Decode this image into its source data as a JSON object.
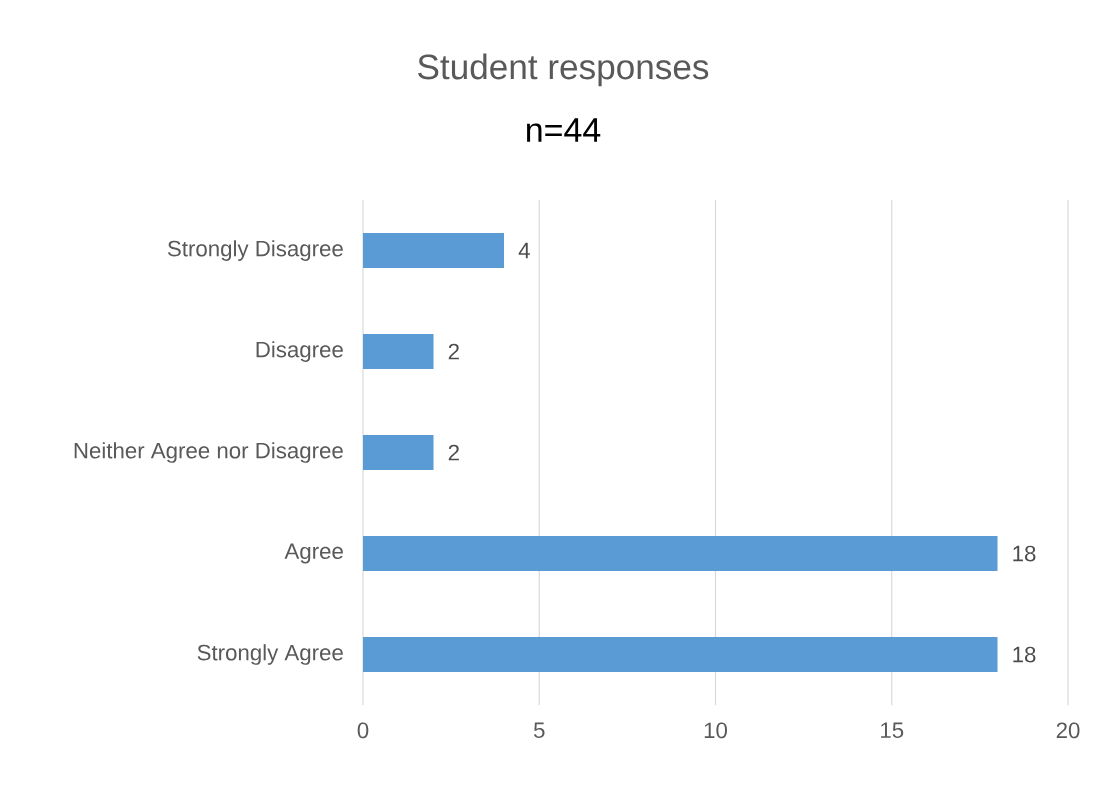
{
  "chart_data": {
    "type": "bar",
    "orientation": "horizontal",
    "title": "Student responses",
    "subtitle": "n=44",
    "categories": [
      "Strongly Disagree",
      "Disagree",
      "Neither Agree nor Disagree",
      "Agree",
      "Strongly Agree"
    ],
    "values": [
      4,
      2,
      2,
      18,
      18
    ],
    "color": "#5b9bd5",
    "xlim": [
      0,
      20
    ],
    "xticks": [
      0,
      5,
      10,
      15,
      20
    ],
    "grid": "x",
    "data_labels": true
  }
}
